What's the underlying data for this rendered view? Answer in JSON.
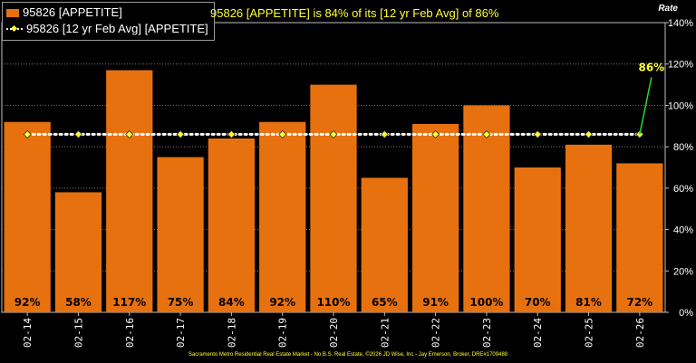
{
  "chart_data": {
    "type": "bar",
    "headline": "95826 [APPETITE] is 84% of its [12 yr Feb Avg] of 86%",
    "axis_title": "Rate",
    "footer": "Sacramento Metro Residential Real Estate Market - No B.S. Real Estate, ©2026 JD Wise, Inc - Jay Emerson, Broker, DRE#1709488",
    "categories": [
      "02-14",
      "02-15",
      "02-16",
      "02-17",
      "02-18",
      "02-19",
      "02-20",
      "02-21",
      "02-22",
      "02-23",
      "02-24",
      "02-25",
      "02-26"
    ],
    "series": [
      {
        "name": "95826 [APPETITE]",
        "type": "bar",
        "color": "#e8710f",
        "values": [
          92,
          58,
          117,
          75,
          84,
          92,
          110,
          65,
          91,
          100,
          70,
          81,
          72
        ],
        "labels": [
          "92%",
          "58%",
          "117%",
          "75%",
          "84%",
          "92%",
          "110%",
          "65%",
          "91%",
          "100%",
          "70%",
          "81%",
          "72%"
        ]
      },
      {
        "name": "95826 [12 yr Feb Avg] [APPETITE]",
        "type": "line",
        "color": "#ffffff",
        "marker_color": "#ffff33",
        "values": [
          86,
          86,
          86,
          86,
          86,
          86,
          86,
          86,
          86,
          86,
          86,
          86,
          86
        ]
      }
    ],
    "annotation": {
      "text": "86%",
      "index": 12,
      "value": 86,
      "color": "#ffff33",
      "line_color": "#22dd22"
    },
    "y_axis": {
      "min": 0,
      "max": 140,
      "step": 20,
      "side": "right",
      "tick_labels": [
        "0%",
        "20%",
        "40%",
        "60%",
        "80%",
        "100%",
        "120%",
        "140%"
      ]
    },
    "grid": true,
    "legend_position": "top-left"
  }
}
